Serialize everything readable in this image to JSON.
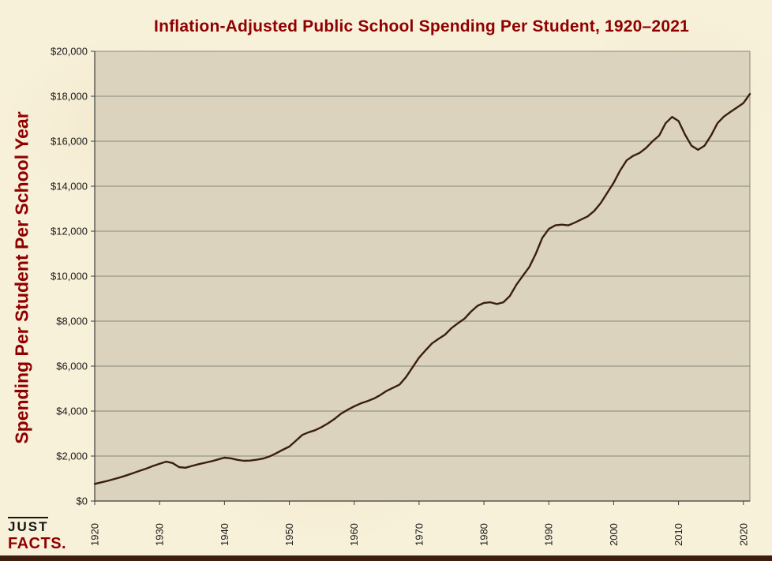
{
  "page": {
    "logo_line1": "JUST",
    "logo_line2": "FACTS."
  },
  "colors": {
    "title": "#8F0000",
    "axis_label": "#8F0000",
    "line": "#3A1F0E",
    "plot_bg": "#DBD3BE",
    "page_bg": "#F8F1DA",
    "grid": "#8A8A7C",
    "axis": "#3C3C3C",
    "tick_text": "#1A1A1A",
    "bottom_bar": "#3E1E0E"
  },
  "chart_data": {
    "type": "line",
    "title": "Inflation-Adjusted Public School Spending Per Student, 1920–2021",
    "xlabel": "",
    "ylabel": "Spending Per Student Per School Year",
    "xlim": [
      1920,
      2021
    ],
    "ylim": [
      0,
      20000
    ],
    "grid": true,
    "legend": "none",
    "x_ticks": [
      {
        "value": 1920,
        "label": "1920"
      },
      {
        "value": 1930,
        "label": "1930"
      },
      {
        "value": 1940,
        "label": "1940"
      },
      {
        "value": 1950,
        "label": "1950"
      },
      {
        "value": 1960,
        "label": "1960"
      },
      {
        "value": 1970,
        "label": "1970"
      },
      {
        "value": 1980,
        "label": "1980"
      },
      {
        "value": 1990,
        "label": "1990"
      },
      {
        "value": 2000,
        "label": "2000"
      },
      {
        "value": 2010,
        "label": "2010"
      },
      {
        "value": 2020,
        "label": "2020"
      }
    ],
    "y_ticks": [
      {
        "value": 0,
        "label": "$0"
      },
      {
        "value": 2000,
        "label": "$2,000"
      },
      {
        "value": 4000,
        "label": "$4,000"
      },
      {
        "value": 6000,
        "label": "$6,000"
      },
      {
        "value": 8000,
        "label": "$8,000"
      },
      {
        "value": 10000,
        "label": "$10,000"
      },
      {
        "value": 12000,
        "label": "$12,000"
      },
      {
        "value": 14000,
        "label": "$14,000"
      },
      {
        "value": 16000,
        "label": "$16,000"
      },
      {
        "value": 18000,
        "label": "$18,000"
      },
      {
        "value": 20000,
        "label": "$20,000"
      }
    ],
    "series": [
      {
        "name": "Inflation-adjusted spending per student",
        "x": [
          1920,
          1921,
          1922,
          1923,
          1924,
          1925,
          1926,
          1927,
          1928,
          1929,
          1930,
          1931,
          1932,
          1933,
          1934,
          1935,
          1936,
          1937,
          1938,
          1939,
          1940,
          1941,
          1942,
          1943,
          1944,
          1945,
          1946,
          1947,
          1948,
          1949,
          1950,
          1951,
          1952,
          1953,
          1954,
          1955,
          1956,
          1957,
          1958,
          1959,
          1960,
          1961,
          1962,
          1963,
          1964,
          1965,
          1966,
          1967,
          1968,
          1969,
          1970,
          1971,
          1972,
          1973,
          1974,
          1975,
          1976,
          1977,
          1978,
          1979,
          1980,
          1981,
          1982,
          1983,
          1984,
          1985,
          1986,
          1987,
          1988,
          1989,
          1990,
          1991,
          1992,
          1993,
          1994,
          1995,
          1996,
          1997,
          1998,
          1999,
          2000,
          2001,
          2002,
          2003,
          2004,
          2005,
          2006,
          2007,
          2008,
          2009,
          2010,
          2011,
          2012,
          2013,
          2014,
          2015,
          2016,
          2017,
          2018,
          2019,
          2020,
          2021
        ],
        "y": [
          760,
          830,
          900,
          980,
          1060,
          1150,
          1250,
          1350,
          1450,
          1560,
          1660,
          1750,
          1690,
          1510,
          1480,
          1560,
          1640,
          1700,
          1770,
          1850,
          1930,
          1900,
          1830,
          1790,
          1800,
          1840,
          1890,
          1990,
          2130,
          2280,
          2420,
          2680,
          2940,
          3060,
          3150,
          3290,
          3460,
          3660,
          3890,
          4060,
          4210,
          4340,
          4440,
          4550,
          4710,
          4900,
          5040,
          5180,
          5520,
          5950,
          6380,
          6700,
          7010,
          7210,
          7400,
          7690,
          7910,
          8110,
          8420,
          8680,
          8810,
          8840,
          8760,
          8840,
          9120,
          9620,
          10020,
          10410,
          11000,
          11700,
          12100,
          12260,
          12290,
          12260,
          12380,
          12520,
          12660,
          12900,
          13250,
          13700,
          14150,
          14700,
          15150,
          15350,
          15480,
          15700,
          16000,
          16250,
          16800,
          17080,
          16900,
          16300,
          15800,
          15620,
          15800,
          16250,
          16800,
          17100,
          17300,
          17500,
          17700,
          18100
        ]
      }
    ]
  }
}
